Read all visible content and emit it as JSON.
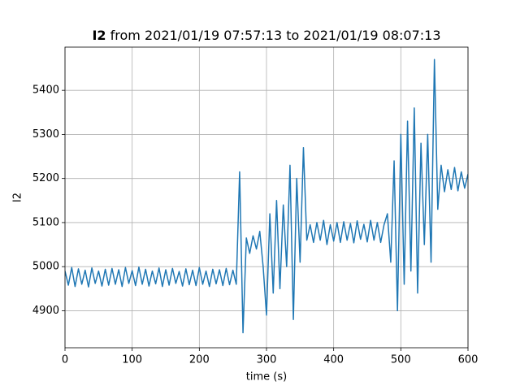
{
  "chart_data": {
    "type": "line",
    "title_name": "I2",
    "title": "from 2021/01/19 07:57:13 to 2021/01/19 08:07:13",
    "xlabel": "time (s)",
    "ylabel": "I2",
    "x": [
      0,
      5,
      10,
      15,
      20,
      25,
      30,
      35,
      40,
      45,
      50,
      55,
      60,
      65,
      70,
      75,
      80,
      85,
      90,
      95,
      100,
      105,
      110,
      115,
      120,
      125,
      130,
      135,
      140,
      145,
      150,
      155,
      160,
      165,
      170,
      175,
      180,
      185,
      190,
      195,
      200,
      205,
      210,
      215,
      220,
      225,
      230,
      235,
      240,
      245,
      250,
      255,
      260,
      265,
      270,
      275,
      280,
      285,
      290,
      295,
      300,
      305,
      310,
      315,
      320,
      325,
      330,
      335,
      340,
      345,
      350,
      355,
      360,
      365,
      370,
      375,
      380,
      385,
      390,
      395,
      400,
      405,
      410,
      415,
      420,
      425,
      430,
      435,
      440,
      445,
      450,
      455,
      460,
      465,
      470,
      475,
      480,
      485,
      490,
      495,
      500,
      505,
      510,
      515,
      520,
      525,
      530,
      535,
      540,
      545,
      550,
      555,
      560,
      565,
      570,
      575,
      580,
      585,
      590,
      595,
      600
    ],
    "series": [
      {
        "name": "I2",
        "color": "#1f77b4",
        "values": [
          4990,
          4958,
          4998,
          4955,
          4995,
          4960,
          4992,
          4954,
          4997,
          4962,
          4990,
          4956,
          4994,
          4958,
          4996,
          4960,
          4993,
          4955,
          4998,
          4962,
          4991,
          4957,
          4999,
          4960,
          4994,
          4956,
          4990,
          4961,
          4997,
          4955,
          4993,
          4958,
          4996,
          4962,
          4989,
          4956,
          4995,
          4959,
          4992,
          4957,
          4998,
          4960,
          4990,
          4955,
          4994,
          4961,
          4993,
          4957,
          4996,
          4959,
          4992,
          4960,
          5215,
          4850,
          5065,
          5030,
          5070,
          5040,
          5080,
          5000,
          4890,
          5120,
          4940,
          5150,
          4950,
          5140,
          5000,
          5230,
          4880,
          5200,
          5010,
          5270,
          5060,
          5095,
          5055,
          5100,
          5060,
          5105,
          5050,
          5095,
          5058,
          5100,
          5055,
          5102,
          5060,
          5098,
          5054,
          5104,
          5062,
          5096,
          5056,
          5105,
          5060,
          5100,
          5055,
          5095,
          5120,
          5010,
          5240,
          4900,
          5300,
          4960,
          5330,
          4990,
          5360,
          4940,
          5280,
          5050,
          5300,
          5010,
          5470,
          5130,
          5230,
          5170,
          5220,
          5175,
          5225,
          5172,
          5215,
          5178,
          5210
        ]
      }
    ],
    "xlim": [
      0,
      600
    ],
    "xticks": [
      0,
      100,
      200,
      300,
      400,
      500,
      600
    ],
    "ylim": [
      4816,
      5498
    ],
    "yticks": [
      4900,
      5000,
      5100,
      5200,
      5300,
      5400
    ],
    "grid": true
  }
}
